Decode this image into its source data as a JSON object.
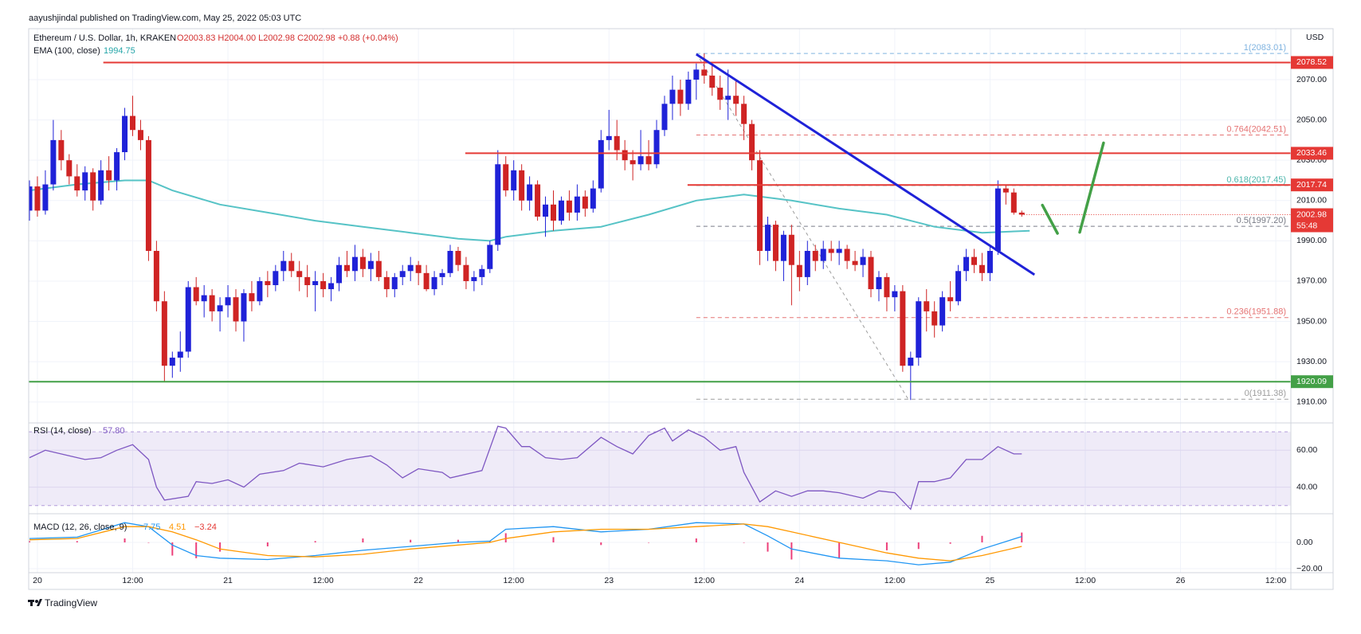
{
  "chart_data": {
    "type": "candlestick",
    "publisher": "aayushjindal published on TradingView.com, May 25, 2022 05:03 UTC",
    "symbol": "Ethereum / U.S. Dollar, 1h, KRAKEN",
    "ohlc_legend": "O2003.83 H2004.00 L2002.98 C2002.98 +0.88 (+0.04%)",
    "currency": "USD",
    "brand": "TradingView",
    "up_color": "#1f22d8",
    "down_color": "#cf2424",
    "xlim": [
      -0.1,
      158.9
    ],
    "xticks": [
      {
        "value": 1,
        "label": "20"
      },
      {
        "value": 13,
        "label": "12:00"
      },
      {
        "value": 25,
        "label": "21"
      },
      {
        "value": 37,
        "label": "12:00"
      },
      {
        "value": 49,
        "label": "22"
      },
      {
        "value": 61,
        "label": "12:00"
      },
      {
        "value": 73,
        "label": "23"
      },
      {
        "value": 85,
        "label": "12:00"
      },
      {
        "value": 97,
        "label": "24"
      },
      {
        "value": 109,
        "label": "12:00"
      },
      {
        "value": 121,
        "label": "25"
      },
      {
        "value": 133,
        "label": "12:00"
      },
      {
        "value": 145,
        "label": "26"
      },
      {
        "value": 157,
        "label": "12:00"
      }
    ],
    "ylim": [
      1900.4,
      2095.3
    ],
    "yticks": [
      {
        "value": 1910,
        "label": "1910.00"
      },
      {
        "value": 1930,
        "label": "1930.00"
      },
      {
        "value": 1950,
        "label": "1950.00"
      },
      {
        "value": 1970,
        "label": "1970.00"
      },
      {
        "value": 1990,
        "label": "1990.00"
      },
      {
        "value": 2010,
        "label": "2010.00"
      },
      {
        "value": 2030,
        "label": "2030.00"
      },
      {
        "value": 2050,
        "label": "2050.00"
      },
      {
        "value": 2070,
        "label": "2070.00"
      }
    ],
    "grid": true,
    "candles": [
      [
        2005,
        2020,
        2000,
        2017
      ],
      [
        2017,
        2022,
        2002,
        2005
      ],
      [
        2005,
        2025,
        2003,
        2018
      ],
      [
        2018,
        2050,
        2015,
        2040
      ],
      [
        2040,
        2045,
        2025,
        2030
      ],
      [
        2030,
        2033,
        2018,
        2022
      ],
      [
        2022,
        2028,
        2012,
        2015
      ],
      [
        2015,
        2027,
        2010,
        2024
      ],
      [
        2024,
        2026,
        2005,
        2010
      ],
      [
        2010,
        2030,
        2008,
        2025
      ],
      [
        2025,
        2032,
        2015,
        2020
      ],
      [
        2020,
        2036,
        2015,
        2034
      ],
      [
        2034,
        2056,
        2030,
        2052
      ],
      [
        2052,
        2062,
        2042,
        2045
      ],
      [
        2045,
        2050,
        2035,
        2040
      ],
      [
        2040,
        2042,
        1980,
        1985
      ],
      [
        1985,
        1990,
        1955,
        1960
      ],
      [
        1960,
        1965,
        1920,
        1928
      ],
      [
        1928,
        1935,
        1922,
        1932
      ],
      [
        1932,
        1945,
        1925,
        1935
      ],
      [
        1935,
        1970,
        1932,
        1967
      ],
      [
        1967,
        1972,
        1958,
        1960
      ],
      [
        1960,
        1968,
        1952,
        1963
      ],
      [
        1963,
        1966,
        1950,
        1955
      ],
      [
        1955,
        1962,
        1945,
        1958
      ],
      [
        1958,
        1968,
        1952,
        1962
      ],
      [
        1962,
        1966,
        1945,
        1950
      ],
      [
        1950,
        1966,
        1940,
        1964
      ],
      [
        1964,
        1970,
        1955,
        1960
      ],
      [
        1960,
        1972,
        1958,
        1970
      ],
      [
        1970,
        1975,
        1962,
        1968
      ],
      [
        1968,
        1978,
        1965,
        1975
      ],
      [
        1975,
        1985,
        1970,
        1980
      ],
      [
        1980,
        1984,
        1972,
        1975
      ],
      [
        1975,
        1980,
        1965,
        1972
      ],
      [
        1972,
        1978,
        1962,
        1968
      ],
      [
        1968,
        1975,
        1955,
        1970
      ],
      [
        1970,
        1974,
        1962,
        1966
      ],
      [
        1966,
        1972,
        1960,
        1969
      ],
      [
        1969,
        1982,
        1965,
        1978
      ],
      [
        1978,
        1985,
        1972,
        1975
      ],
      [
        1975,
        1988,
        1970,
        1982
      ],
      [
        1982,
        1986,
        1972,
        1976
      ],
      [
        1976,
        1984,
        1970,
        1980
      ],
      [
        1980,
        1985,
        1970,
        1972
      ],
      [
        1972,
        1975,
        1962,
        1966
      ],
      [
        1966,
        1974,
        1962,
        1972
      ],
      [
        1972,
        1978,
        1968,
        1975
      ],
      [
        1975,
        1982,
        1970,
        1978
      ],
      [
        1978,
        1980,
        1968,
        1974
      ],
      [
        1974,
        1978,
        1965,
        1966
      ],
      [
        1966,
        1975,
        1963,
        1972
      ],
      [
        1972,
        1976,
        1968,
        1974
      ],
      [
        1974,
        1988,
        1972,
        1985
      ],
      [
        1985,
        1987,
        1975,
        1978
      ],
      [
        1978,
        1982,
        1966,
        1970
      ],
      [
        1970,
        1975,
        1965,
        1972
      ],
      [
        1972,
        1978,
        1968,
        1976
      ],
      [
        1976,
        1990,
        1974,
        1988
      ],
      [
        1988,
        2035,
        1985,
        2028
      ],
      [
        2028,
        2032,
        2012,
        2015
      ],
      [
        2015,
        2030,
        2010,
        2025
      ],
      [
        2025,
        2028,
        2005,
        2010
      ],
      [
        2010,
        2022,
        2005,
        2018
      ],
      [
        2018,
        2020,
        2000,
        2002
      ],
      [
        2002,
        2012,
        1992,
        2008
      ],
      [
        2008,
        2015,
        1995,
        2000
      ],
      [
        2000,
        2012,
        1998,
        2010
      ],
      [
        2010,
        2015,
        2000,
        2004
      ],
      [
        2004,
        2018,
        2000,
        2012
      ],
      [
        2012,
        2015,
        2002,
        2006
      ],
      [
        2006,
        2020,
        2004,
        2016
      ],
      [
        2016,
        2045,
        2014,
        2040
      ],
      [
        2040,
        2055,
        2035,
        2042
      ],
      [
        2042,
        2050,
        2030,
        2035
      ],
      [
        2035,
        2040,
        2025,
        2030
      ],
      [
        2030,
        2035,
        2020,
        2028
      ],
      [
        2028,
        2045,
        2025,
        2032
      ],
      [
        2032,
        2040,
        2025,
        2028
      ],
      [
        2028,
        2050,
        2026,
        2045
      ],
      [
        2045,
        2062,
        2042,
        2058
      ],
      [
        2058,
        2072,
        2050,
        2065
      ],
      [
        2065,
        2070,
        2052,
        2058
      ],
      [
        2058,
        2074,
        2055,
        2070
      ],
      [
        2070,
        2078,
        2060,
        2075
      ],
      [
        2075,
        2083,
        2068,
        2072
      ],
      [
        2072,
        2078,
        2062,
        2066
      ],
      [
        2066,
        2072,
        2055,
        2060
      ],
      [
        2060,
        2075,
        2050,
        2062
      ],
      [
        2062,
        2070,
        2052,
        2058
      ],
      [
        2058,
        2062,
        2040,
        2048
      ],
      [
        2048,
        2050,
        2025,
        2030
      ],
      [
        2030,
        2035,
        1978,
        1985
      ],
      [
        1985,
        2002,
        1980,
        1998
      ],
      [
        1998,
        2000,
        1975,
        1980
      ],
      [
        1980,
        1995,
        1970,
        1993
      ],
      [
        1993,
        1998,
        1958,
        1978
      ],
      [
        1978,
        1985,
        1965,
        1972
      ],
      [
        1972,
        1990,
        1968,
        1985
      ],
      [
        1985,
        1988,
        1975,
        1980
      ],
      [
        1980,
        1990,
        1976,
        1986
      ],
      [
        1986,
        1990,
        1980,
        1984
      ],
      [
        1984,
        1990,
        1978,
        1986
      ],
      [
        1986,
        1988,
        1976,
        1980
      ],
      [
        1980,
        1985,
        1975,
        1978
      ],
      [
        1978,
        1986,
        1972,
        1982
      ],
      [
        1982,
        1985,
        1962,
        1966
      ],
      [
        1966,
        1975,
        1960,
        1972
      ],
      [
        1972,
        1974,
        1955,
        1962
      ],
      [
        1962,
        1968,
        1955,
        1965
      ],
      [
        1965,
        1968,
        1925,
        1928
      ],
      [
        1928,
        1935,
        1911,
        1932
      ],
      [
        1932,
        1962,
        1928,
        1960
      ],
      [
        1960,
        1966,
        1945,
        1955
      ],
      [
        1955,
        1960,
        1942,
        1948
      ],
      [
        1948,
        1965,
        1945,
        1962
      ],
      [
        1962,
        1970,
        1955,
        1960
      ],
      [
        1960,
        1978,
        1958,
        1975
      ],
      [
        1975,
        1986,
        1970,
        1982
      ],
      [
        1982,
        1986,
        1974,
        1978
      ],
      [
        1978,
        1984,
        1970,
        1974
      ],
      [
        1974,
        1988,
        1970,
        1985
      ],
      [
        1985,
        2020,
        1983,
        2016
      ],
      [
        2016,
        2018,
        2008,
        2014
      ],
      [
        2014,
        2016,
        2003,
        2004
      ],
      [
        2004,
        2005,
        2002,
        2003
      ]
    ],
    "ema": {
      "name": "EMA (100, close)",
      "legend_value": 1994.75,
      "color": "#56c3c6",
      "x": [
        0,
        6,
        12,
        15,
        18,
        24,
        30,
        36,
        42,
        48,
        54,
        58,
        60,
        66,
        72,
        78,
        84,
        90,
        96,
        102,
        108,
        114,
        120,
        126
      ],
      "values": [
        2015,
        2018,
        2020,
        2020,
        2015,
        2008,
        2004,
        2000,
        1997,
        1994,
        1991,
        1990,
        1992,
        1995,
        1997,
        2003,
        2010,
        2013,
        2010,
        2006,
        2003,
        1997,
        1994,
        1995
      ]
    },
    "levels": [
      {
        "value": 2078.52,
        "start": 9.3,
        "color": "#e53935"
      },
      {
        "value": 2033.46,
        "start": 54.9,
        "color": "#e53935"
      },
      {
        "value": 2017.74,
        "start": 82.9,
        "color": "#e53935"
      },
      {
        "value": 1920.09,
        "start": -0.1,
        "color": "#43a047"
      }
    ],
    "last_price": {
      "value": 2002.98,
      "countdown": "55:48",
      "color": "#e53935"
    },
    "fib_start": 84,
    "fib_levels": [
      {
        "label": "1(2083.01)",
        "value": 2083.01,
        "color": "#7fb3e0"
      },
      {
        "label": "0.764(2042.51)",
        "value": 2042.51,
        "color": "#e57373"
      },
      {
        "label": "0.618(2017.45)",
        "value": 2017.45,
        "color": "#4db6ac"
      },
      {
        "label": "0.5(1997.20)",
        "value": 1997.2,
        "color": "#787b86"
      },
      {
        "label": "0.236(1951.88)",
        "value": 1951.88,
        "color": "#e57373"
      },
      {
        "label": "0(1911.38)",
        "value": 1911.38,
        "color": "#9e9e9e"
      }
    ],
    "fib_diagonal": {
      "x": [
        84,
        110.7
      ],
      "y": [
        2083.01,
        1911.38
      ],
      "color": "#9e9e9e"
    },
    "trendline": {
      "x": [
        84,
        126.6
      ],
      "y": [
        2082.6,
        1973.2
      ],
      "color": "#1f22d8"
    },
    "arrows": [
      {
        "x": [
          127.6,
          129.5
        ],
        "y": [
          2007.7,
          1993.7
        ],
        "color": "#43a047"
      },
      {
        "x": [
          132.3,
          135.3
        ],
        "y": [
          1994.2,
          2038.6
        ],
        "color": "#43a047"
      }
    ],
    "rsi": {
      "name": "RSI (14, close)",
      "legend_value": {
        "value": 57.8,
        "label": "57.80"
      },
      "color": "#7e57c2",
      "ylim": [
        25.6,
        74.8
      ],
      "band": [
        30,
        70
      ],
      "yticks": [
        {
          "value": 40,
          "label": "40.00"
        },
        {
          "value": 60,
          "label": "60.00"
        }
      ],
      "x": [
        0,
        2,
        5,
        7,
        9,
        11,
        13,
        15,
        16,
        17,
        20,
        21,
        23,
        25,
        27,
        29,
        32,
        34,
        37,
        40,
        43,
        45,
        47,
        49,
        52,
        53,
        57,
        59,
        60,
        62,
        63,
        65,
        67,
        69,
        72,
        74,
        76,
        78,
        80,
        81,
        83,
        85,
        87,
        89,
        90,
        92,
        94,
        96,
        98,
        100,
        102,
        105,
        107,
        109,
        111,
        112,
        114,
        116,
        118,
        120,
        122,
        124,
        125
      ],
      "values": [
        56,
        60,
        57,
        55,
        56,
        60,
        63,
        55,
        40,
        33,
        35,
        43,
        42,
        44,
        40,
        47,
        49,
        53,
        51,
        55,
        57,
        52,
        45,
        50,
        48,
        45,
        49,
        73,
        72,
        62,
        62,
        56,
        55,
        56,
        67,
        62,
        58,
        68,
        72,
        65,
        71,
        67,
        60,
        62,
        48,
        32,
        38,
        35,
        38,
        38,
        37,
        34,
        38,
        37,
        28,
        43,
        43,
        45,
        55,
        55,
        62,
        58,
        58
      ]
    },
    "macd": {
      "name": "MACD (12, 26, close, 9)",
      "legend_values": [
        {
          "value": 7.75,
          "color": "#2196f3"
        },
        {
          "value": 4.51,
          "color": "#ff9800"
        },
        {
          "value": -3.24,
          "label": "−3.24",
          "color": "#e53935"
        }
      ],
      "ylim": [
        -23,
        21.8
      ],
      "yticks": [
        {
          "value": -20,
          "label": "−20.00"
        },
        {
          "value": 0,
          "label": "0.00"
        }
      ],
      "x": [
        0,
        6,
        12,
        15,
        18,
        21,
        24,
        30,
        36,
        42,
        48,
        54,
        58,
        60,
        66,
        72,
        78,
        84,
        90,
        93,
        96,
        102,
        108,
        112,
        116,
        120,
        125
      ],
      "series": [
        {
          "color": "#2196f3",
          "values": [
            3,
            4,
            15,
            12,
            -2,
            -10,
            -12,
            -13,
            -10,
            -6,
            -3,
            0,
            1,
            10,
            12,
            8,
            10,
            15,
            14,
            5,
            -5,
            -12,
            -14,
            -17,
            -15,
            -5,
            4.5
          ]
        },
        {
          "color": "#ff9800",
          "values": [
            2,
            3,
            12,
            12,
            8,
            2,
            -5,
            -10,
            -11,
            -9,
            -5,
            -2,
            0,
            3,
            8,
            10,
            10,
            12,
            14,
            12,
            8,
            0,
            -8,
            -12,
            -14,
            -10,
            -3
          ]
        }
      ],
      "histogram": {
        "color": "#ec407a",
        "values": [
          1,
          1,
          3,
          0,
          -10,
          -12,
          -7,
          -3,
          1,
          3,
          2,
          2,
          1,
          7,
          4,
          -2,
          0,
          3,
          0,
          -7,
          -13,
          -12,
          -6,
          -5,
          -1,
          5,
          7.5
        ]
      }
    }
  }
}
